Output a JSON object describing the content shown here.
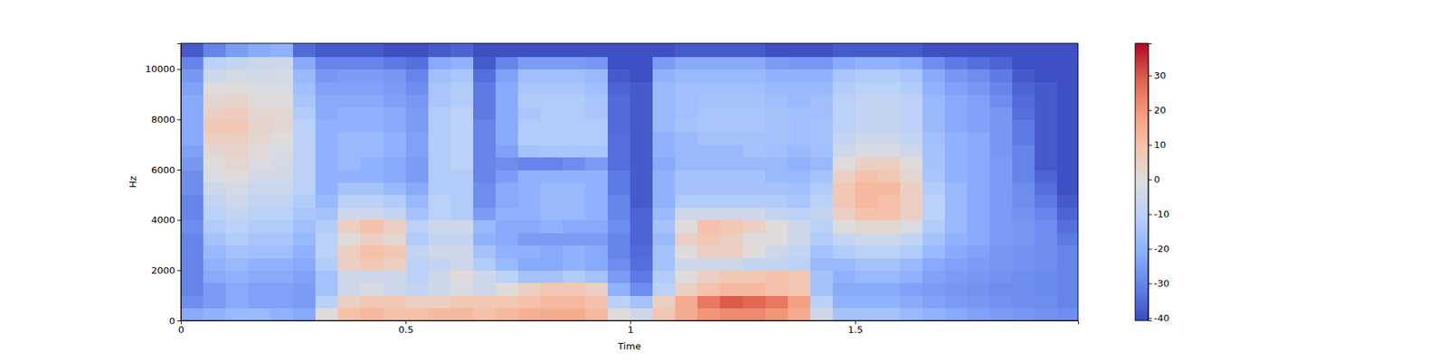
{
  "chart_data": {
    "type": "heatmap",
    "x_label": "Time",
    "y_label": "Hz",
    "xlim": [
      0,
      1.996
    ],
    "xticks": [
      0,
      0.5,
      1,
      1.5
    ],
    "ylim": [
      0,
      11025
    ],
    "yticks": [
      0,
      2000,
      4000,
      6000,
      8000,
      10000
    ],
    "colorbar_range": [
      -40.7,
      39.3
    ],
    "colorbar_ticks": [
      -40,
      -30,
      -20,
      -10,
      0,
      10,
      20,
      30
    ],
    "x": [
      0.025,
      0.075,
      0.125,
      0.175,
      0.225,
      0.275,
      0.325,
      0.375,
      0.425,
      0.475,
      0.525,
      0.575,
      0.625,
      0.675,
      0.725,
      0.775,
      0.825,
      0.875,
      0.925,
      0.975,
      1.025,
      1.075,
      1.125,
      1.175,
      1.225,
      1.275,
      1.325,
      1.375,
      1.425,
      1.475,
      1.525,
      1.575,
      1.625,
      1.675,
      1.725,
      1.775,
      1.825,
      1.875,
      1.925,
      1.975
    ],
    "y": [
      250,
      750,
      1250,
      1750,
      2250,
      2750,
      3250,
      3750,
      4250,
      4750,
      5250,
      5750,
      6250,
      6750,
      7250,
      7750,
      8250,
      8750,
      9250,
      9750,
      10250,
      10750
    ],
    "z": [
      [
        -22,
        -28,
        -30,
        -30,
        -30,
        -30,
        -30,
        -28,
        -30,
        -30,
        -28,
        -28,
        -26,
        -24,
        -22,
        -22,
        -22,
        -22,
        -24,
        -26,
        -30,
        -38
      ],
      [
        -20,
        -25,
        -25,
        -22,
        -20,
        -18,
        -15,
        -12,
        -10,
        -8,
        -5,
        -2,
        0,
        2,
        5,
        8,
        5,
        2,
        0,
        -5,
        -10,
        -30
      ],
      [
        -18,
        -22,
        -22,
        -20,
        -18,
        -15,
        -12,
        -10,
        -8,
        -5,
        -3,
        0,
        2,
        3,
        5,
        8,
        6,
        3,
        0,
        -3,
        -8,
        -25
      ],
      [
        -18,
        -24,
        -24,
        -22,
        -20,
        -16,
        -14,
        -12,
        -10,
        -8,
        -6,
        -4,
        -2,
        0,
        2,
        3,
        2,
        0,
        -2,
        -4,
        -6,
        -22
      ],
      [
        -20,
        -24,
        -24,
        -22,
        -20,
        -16,
        -14,
        -12,
        -10,
        -8,
        -6,
        -4,
        -3,
        -2,
        0,
        2,
        2,
        0,
        -2,
        -3,
        -5,
        -20
      ],
      [
        -22,
        -25,
        -25,
        -24,
        -22,
        -20,
        -18,
        -16,
        -14,
        -12,
        -10,
        -10,
        -10,
        -10,
        -10,
        -10,
        -12,
        -14,
        -16,
        -18,
        -22,
        -35
      ],
      [
        0,
        -10,
        -15,
        -15,
        -12,
        -10,
        -10,
        -12,
        -15,
        -18,
        -20,
        -20,
        -20,
        -20,
        -20,
        -20,
        -22,
        -22,
        -24,
        -26,
        -30,
        -38
      ],
      [
        10,
        5,
        -5,
        -5,
        5,
        5,
        0,
        5,
        -5,
        -10,
        -15,
        -20,
        -18,
        -18,
        -18,
        -20,
        -20,
        -22,
        -24,
        -25,
        -30,
        -38
      ],
      [
        12,
        8,
        -2,
        -5,
        8,
        10,
        5,
        10,
        -5,
        -10,
        -15,
        -20,
        -20,
        -18,
        -18,
        -20,
        -20,
        -22,
        -24,
        -25,
        -30,
        -38
      ],
      [
        10,
        8,
        -5,
        -5,
        5,
        8,
        2,
        5,
        -8,
        -12,
        -18,
        -22,
        -22,
        -20,
        -20,
        -22,
        -22,
        -24,
        -25,
        -26,
        -32,
        -40
      ],
      [
        10,
        5,
        -8,
        -10,
        -10,
        -8,
        -12,
        -10,
        -15,
        -18,
        -22,
        -25,
        -25,
        -24,
        -24,
        -25,
        -25,
        -26,
        -28,
        -30,
        -34,
        -40
      ],
      [
        12,
        5,
        -5,
        -5,
        -8,
        -5,
        -8,
        -5,
        -10,
        -10,
        -12,
        -12,
        -12,
        -12,
        -12,
        -12,
        -12,
        -14,
        -14,
        -16,
        -22,
        -38
      ],
      [
        12,
        8,
        -2,
        0,
        -5,
        -5,
        -8,
        -5,
        -12,
        -12,
        -12,
        -12,
        -10,
        -10,
        -10,
        -10,
        -10,
        -12,
        -12,
        -14,
        -20,
        -36
      ],
      [
        10,
        8,
        -5,
        -5,
        -12,
        -15,
        -20,
        -18,
        -25,
        -28,
        -28,
        -30,
        -30,
        -30,
        -30,
        -30,
        -32,
        -32,
        -32,
        -34,
        -38,
        -40
      ],
      [
        12,
        8,
        0,
        -10,
        -18,
        -20,
        -22,
        -22,
        -20,
        -22,
        -22,
        -25,
        -28,
        -24,
        -22,
        -22,
        -22,
        -22,
        -22,
        -24,
        -30,
        -40
      ],
      [
        14,
        10,
        5,
        -15,
        -22,
        -20,
        -25,
        -22,
        -20,
        -20,
        -20,
        -20,
        -30,
        -15,
        -12,
        -12,
        -14,
        -12,
        -14,
        -16,
        -25,
        -40
      ],
      [
        15,
        12,
        8,
        -15,
        -22,
        -22,
        -25,
        -20,
        -18,
        -18,
        -18,
        -20,
        -30,
        -14,
        -12,
        -12,
        -12,
        -12,
        -14,
        -16,
        -25,
        -40
      ],
      [
        15,
        12,
        8,
        -12,
        -20,
        -20,
        -25,
        -22,
        -18,
        -18,
        -18,
        -20,
        -28,
        -14,
        -12,
        -12,
        -12,
        -12,
        -14,
        -16,
        -25,
        -40
      ],
      [
        12,
        10,
        5,
        -15,
        -22,
        -22,
        -25,
        -22,
        -20,
        -20,
        -20,
        -20,
        -25,
        -14,
        -12,
        -12,
        -14,
        -14,
        -16,
        -18,
        -26,
        -40
      ],
      [
        0,
        -10,
        -20,
        -25,
        -28,
        -30,
        -30,
        -28,
        -30,
        -30,
        -32,
        -32,
        -34,
        -34,
        -34,
        -35,
        -35,
        -35,
        -36,
        -38,
        -40,
        -40
      ],
      [
        -5,
        -15,
        -28,
        -32,
        -34,
        -35,
        -36,
        -36,
        -36,
        -38,
        -38,
        -38,
        -38,
        -38,
        -38,
        -38,
        -38,
        -38,
        -38,
        -40,
        -40,
        -40
      ],
      [
        8,
        5,
        -10,
        -12,
        -15,
        -15,
        -18,
        -15,
        -18,
        -20,
        -20,
        -20,
        -22,
        -20,
        -20,
        -18,
        -18,
        -18,
        -18,
        -20,
        -25,
        -40
      ],
      [
        15,
        15,
        5,
        0,
        -5,
        0,
        5,
        0,
        -5,
        -12,
        -15,
        -15,
        -18,
        -18,
        -18,
        -15,
        -16,
        -16,
        -16,
        -18,
        -22,
        -38
      ],
      [
        20,
        25,
        10,
        5,
        -5,
        5,
        8,
        10,
        -5,
        -12,
        -15,
        -15,
        -18,
        -18,
        -15,
        -14,
        -14,
        -15,
        -16,
        -18,
        -22,
        -38
      ],
      [
        22,
        30,
        12,
        8,
        -5,
        5,
        5,
        8,
        -5,
        -12,
        -15,
        -15,
        -18,
        -18,
        -15,
        -14,
        -14,
        -15,
        -16,
        -18,
        -22,
        -38
      ],
      [
        22,
        28,
        12,
        8,
        -8,
        0,
        0,
        5,
        -5,
        -12,
        -15,
        -15,
        -18,
        -15,
        -15,
        -14,
        -14,
        -15,
        -16,
        -18,
        -22,
        -38
      ],
      [
        20,
        25,
        10,
        10,
        -8,
        -5,
        0,
        0,
        -8,
        -12,
        -15,
        -18,
        -18,
        -16,
        -15,
        -15,
        -15,
        -16,
        -18,
        -20,
        -25,
        -40
      ],
      [
        15,
        18,
        8,
        8,
        -10,
        -8,
        -5,
        -5,
        -10,
        -14,
        -16,
        -18,
        -20,
        -18,
        -16,
        -16,
        -16,
        -18,
        -18,
        -20,
        -26,
        -40
      ],
      [
        -5,
        -10,
        -15,
        -15,
        -18,
        -15,
        -12,
        -10,
        -8,
        -10,
        -12,
        -15,
        -18,
        -16,
        -15,
        -15,
        -16,
        -16,
        -18,
        -20,
        -26,
        -40
      ],
      [
        -15,
        -20,
        -22,
        -20,
        -18,
        -12,
        -8,
        0,
        5,
        8,
        8,
        5,
        0,
        -5,
        -8,
        -10,
        -10,
        -10,
        -12,
        -14,
        -22,
        -38
      ],
      [
        -15,
        -20,
        -22,
        -18,
        -15,
        -10,
        -5,
        2,
        10,
        12,
        12,
        10,
        5,
        -2,
        -5,
        -8,
        -8,
        -8,
        -10,
        -12,
        -20,
        -38
      ],
      [
        -15,
        -20,
        -22,
        -18,
        -15,
        -10,
        -5,
        2,
        10,
        10,
        12,
        8,
        5,
        -2,
        -5,
        -8,
        -8,
        -8,
        -10,
        -12,
        -20,
        -38
      ],
      [
        -18,
        -22,
        -24,
        -20,
        -18,
        -12,
        -8,
        -2,
        5,
        5,
        5,
        2,
        0,
        -5,
        -8,
        -10,
        -10,
        -10,
        -12,
        -14,
        -22,
        -38
      ],
      [
        -20,
        -24,
        -25,
        -24,
        -22,
        -18,
        -15,
        -12,
        -10,
        -10,
        -12,
        -14,
        -15,
        -15,
        -16,
        -18,
        -18,
        -18,
        -20,
        -22,
        -28,
        -40
      ],
      [
        -22,
        -25,
        -26,
        -25,
        -24,
        -22,
        -20,
        -18,
        -18,
        -18,
        -18,
        -20,
        -20,
        -20,
        -20,
        -22,
        -22,
        -22,
        -24,
        -26,
        -32,
        -40
      ],
      [
        -24,
        -26,
        -27,
        -26,
        -25,
        -24,
        -22,
        -22,
        -22,
        -22,
        -22,
        -22,
        -22,
        -22,
        -22,
        -24,
        -24,
        -24,
        -26,
        -28,
        -34,
        -40
      ],
      [
        -25,
        -27,
        -28,
        -27,
        -26,
        -26,
        -25,
        -25,
        -25,
        -25,
        -25,
        -25,
        -25,
        -26,
        -26,
        -26,
        -26,
        -28,
        -30,
        -32,
        -36,
        -40
      ],
      [
        -26,
        -28,
        -28,
        -28,
        -27,
        -27,
        -26,
        -26,
        -27,
        -28,
        -28,
        -30,
        -30,
        -30,
        -32,
        -32,
        -34,
        -35,
        -36,
        -38,
        -40,
        -40
      ],
      [
        -27,
        -28,
        -29,
        -29,
        -28,
        -28,
        -28,
        -28,
        -30,
        -32,
        -34,
        -36,
        -38,
        -38,
        -38,
        -38,
        -38,
        -38,
        -38,
        -40,
        -40,
        -40
      ],
      [
        -28,
        -30,
        -30,
        -30,
        -30,
        -30,
        -32,
        -34,
        -36,
        -38,
        -40,
        -40,
        -40,
        -40,
        -40,
        -40,
        -40,
        -40,
        -40,
        -40,
        -40,
        -40
      ]
    ]
  }
}
